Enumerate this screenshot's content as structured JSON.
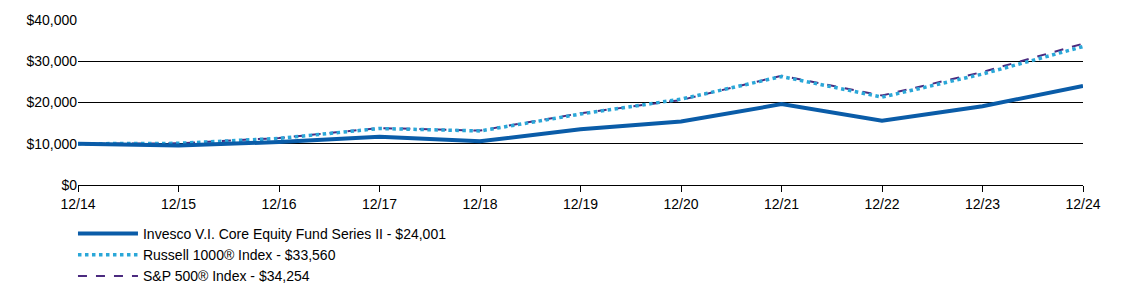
{
  "chart_data": {
    "type": "line",
    "categories": [
      "12/14",
      "12/15",
      "12/16",
      "12/17",
      "12/18",
      "12/19",
      "12/20",
      "12/21",
      "12/22",
      "12/23",
      "12/24"
    ],
    "series": [
      {
        "name": "Invesco V.I. Core Equity Fund Series II - $24,001",
        "color": "#0a5ca8",
        "line_style": "solid",
        "values": [
          10000,
          9600,
          10400,
          11700,
          10600,
          13500,
          15400,
          19600,
          15600,
          19100,
          24001
        ]
      },
      {
        "name": "Russell 1000® Index - $33,560",
        "color": "#2aa7d8",
        "line_style": "dot",
        "values": [
          10000,
          10100,
          11300,
          13700,
          13100,
          17200,
          20800,
          26300,
          21300,
          26900,
          33560
        ]
      },
      {
        "name": "S&P 500® Index - $34,254",
        "color": "#4b2a7f",
        "line_style": "dash",
        "values": [
          10000,
          10100,
          11400,
          13800,
          13200,
          17400,
          20600,
          26500,
          21700,
          27400,
          34254
        ]
      }
    ],
    "ylim": [
      0,
      40000
    ],
    "yticks": [
      {
        "value": 0,
        "label": "$0"
      },
      {
        "value": 10000,
        "label": "$10,000"
      },
      {
        "value": 20000,
        "label": "$20,000"
      },
      {
        "value": 30000,
        "label": "$30,000"
      },
      {
        "value": 40000,
        "label": "$40,000"
      }
    ],
    "grid": true,
    "legend": "bottom-left"
  }
}
